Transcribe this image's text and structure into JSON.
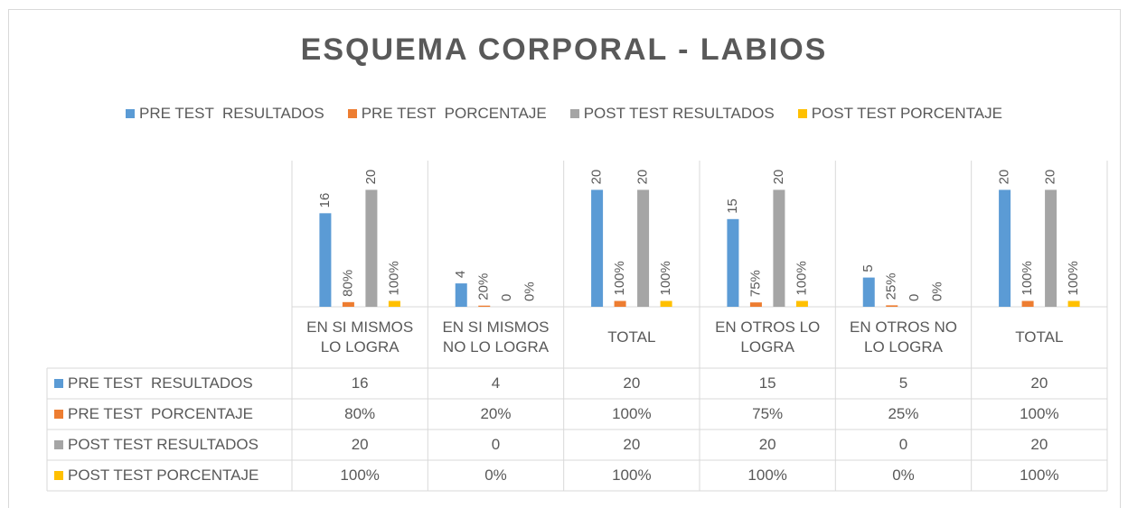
{
  "chart_data": {
    "type": "bar",
    "title": "ESQUEMA CORPORAL - LABIOS",
    "categories": [
      "EN SI MISMOS LO LOGRA",
      "EN SI MISMOS NO LO LOGRA",
      "TOTAL",
      "EN OTROS LO LOGRA",
      "EN OTROS NO LO LOGRA",
      "TOTAL"
    ],
    "series": [
      {
        "name": "PRE TEST  RESULTADOS",
        "color": "#5b9bd5",
        "values": [
          16,
          4,
          20,
          15,
          5,
          20
        ]
      },
      {
        "name": "PRE TEST  PORCENTAJE",
        "color": "#ed7d31",
        "values": [
          0.8,
          0.2,
          1,
          0.75,
          0.25,
          1
        ],
        "value_labels": [
          "80%",
          "20%",
          "100%",
          "75%",
          "25%",
          "100%"
        ]
      },
      {
        "name": "POST TEST RESULTADOS",
        "color": "#a5a5a5",
        "values": [
          20,
          0,
          20,
          20,
          0,
          20
        ]
      },
      {
        "name": "POST TEST PORCENTAJE",
        "color": "#ffc000",
        "values": [
          1,
          0,
          1,
          1,
          0,
          1
        ],
        "value_labels": [
          "100%",
          "0%",
          "100%",
          "100%",
          "0%",
          "100%"
        ]
      }
    ],
    "ylim": [
      0,
      25
    ],
    "legend": "top",
    "data_table": true
  }
}
